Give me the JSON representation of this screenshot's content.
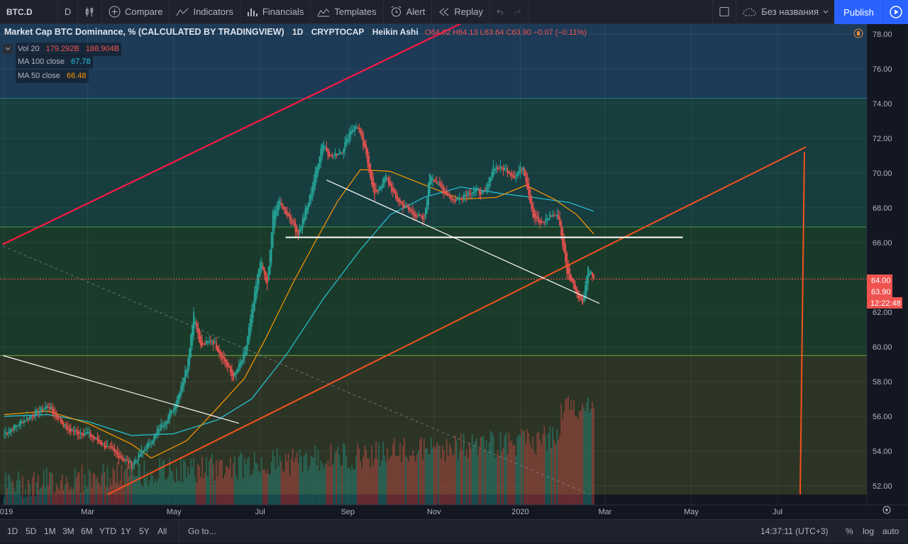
{
  "toolbar": {
    "symbol": "BTC.D",
    "interval": "D",
    "compare": "Compare",
    "indicators": "Indicators",
    "financials": "Financials",
    "templates": "Templates",
    "alert": "Alert",
    "replay": "Replay",
    "layout_name": "Без названия",
    "publish": "Publish"
  },
  "legend": {
    "title": "Market Cap BTC Dominance, % (CALCULATED BY TRADINGVIEW)",
    "interval": "1D",
    "exchange": "CRYPTOCAP",
    "style": "Heikin Ashi",
    "ohlc": "O64.02  H64.13  L63.64  C63.90  −0.07 (−0.11%)",
    "vol_label": "Vol 20",
    "vol_v1": "179.292B",
    "vol_v2": "188.904B",
    "ma100_label": "MA 100 close",
    "ma100_value": "67.78",
    "ma50_label": "MA 50 close",
    "ma50_value": "66.48"
  },
  "colors": {
    "up": "#26a69a",
    "down": "#ef5350",
    "ma100": "#26c6da",
    "ma50": "#ff9800",
    "trend_red": "#ff1744",
    "support_white": "#ffffff"
  },
  "chart_data": {
    "type": "candlestick",
    "title": "Market Cap BTC Dominance, % (CALCULATED BY TRADINGVIEW)",
    "ylim": [
      51.5,
      79
    ],
    "y_ticks": [
      "78.00",
      "76.00",
      "74.00",
      "72.00",
      "70.00",
      "68.00",
      "66.00",
      "64.00",
      "62.00",
      "60.00",
      "58.00",
      "56.00",
      "54.00",
      "52.00"
    ],
    "x_ticks": [
      "2019",
      "Mar",
      "May",
      "Jul",
      "Sep",
      "Nov",
      "2020",
      "Mar",
      "May",
      "Jul"
    ],
    "price_labels": [
      "64.00",
      "63.90"
    ],
    "countdown": "12:22:48",
    "zones": [
      {
        "from": 74.3,
        "to": 79,
        "color": "#1d3b57"
      },
      {
        "from": 66.9,
        "to": 74.3,
        "color": "#173d3f"
      },
      {
        "from": 59.5,
        "to": 66.9,
        "color": "#1a3a2a"
      },
      {
        "from": 51.5,
        "to": 59.5,
        "color": "#2c3525"
      }
    ],
    "price_path": [
      [
        "2019-01-01",
        55.0
      ],
      [
        "2019-01-15",
        55.8
      ],
      [
        "2019-02-01",
        56.6
      ],
      [
        "2019-02-15",
        55.2
      ],
      [
        "2019-03-01",
        55.0
      ],
      [
        "2019-03-15",
        54.2
      ],
      [
        "2019-04-01",
        53.2
      ],
      [
        "2019-04-15",
        54.6
      ],
      [
        "2019-05-01",
        56.5
      ],
      [
        "2019-05-10",
        58.8
      ],
      [
        "2019-05-15",
        62.0
      ],
      [
        "2019-05-20",
        60.0
      ],
      [
        "2019-05-28",
        60.4
      ],
      [
        "2019-06-05",
        59.3
      ],
      [
        "2019-06-12",
        58.2
      ],
      [
        "2019-06-20",
        59.6
      ],
      [
        "2019-06-26",
        62.5
      ],
      [
        "2019-07-01",
        65.0
      ],
      [
        "2019-07-06",
        63.5
      ],
      [
        "2019-07-10",
        67.6
      ],
      [
        "2019-07-14",
        68.4
      ],
      [
        "2019-07-22",
        67.4
      ],
      [
        "2019-07-28",
        66.5
      ],
      [
        "2019-08-05",
        68.6
      ],
      [
        "2019-08-10",
        70.3
      ],
      [
        "2019-08-14",
        71.8
      ],
      [
        "2019-08-20",
        70.9
      ],
      [
        "2019-08-28",
        71.3
      ],
      [
        "2019-09-03",
        72.5
      ],
      [
        "2019-09-08",
        72.7
      ],
      [
        "2019-09-14",
        71.0
      ],
      [
        "2019-09-20",
        68.7
      ],
      [
        "2019-09-28",
        69.8
      ],
      [
        "2019-10-05",
        68.5
      ],
      [
        "2019-10-15",
        67.8
      ],
      [
        "2019-10-25",
        67.3
      ],
      [
        "2019-10-29",
        70.0
      ],
      [
        "2019-11-05",
        69.2
      ],
      [
        "2019-11-15",
        68.4
      ],
      [
        "2019-11-25",
        68.9
      ],
      [
        "2019-12-01",
        69.0
      ],
      [
        "2019-12-07",
        68.8
      ],
      [
        "2019-12-13",
        70.4
      ],
      [
        "2019-12-22",
        70.2
      ],
      [
        "2019-12-28",
        69.8
      ],
      [
        "2020-01-03",
        70.4
      ],
      [
        "2020-01-10",
        67.6
      ],
      [
        "2020-01-16",
        67.0
      ],
      [
        "2020-01-22",
        67.6
      ],
      [
        "2020-01-28",
        67.5
      ],
      [
        "2020-02-03",
        64.3
      ],
      [
        "2020-02-09",
        63.3
      ],
      [
        "2020-02-14",
        62.5
      ],
      [
        "2020-02-18",
        64.6
      ],
      [
        "2020-02-22",
        63.9
      ]
    ],
    "ma50": [
      [
        "2019-01-01",
        56.1
      ],
      [
        "2019-02-01",
        56.3
      ],
      [
        "2019-03-01",
        55.6
      ],
      [
        "2019-04-01",
        54.4
      ],
      [
        "2019-04-15",
        53.6
      ],
      [
        "2019-05-10",
        54.6
      ],
      [
        "2019-06-01",
        56.5
      ],
      [
        "2019-06-20",
        58.2
      ],
      [
        "2019-07-05",
        60.5
      ],
      [
        "2019-07-25",
        63.8
      ],
      [
        "2019-08-10",
        66.2
      ],
      [
        "2019-08-25",
        68.4
      ],
      [
        "2019-09-10",
        70.2
      ],
      [
        "2019-10-01",
        70.1
      ],
      [
        "2019-11-01",
        69.1
      ],
      [
        "2019-11-20",
        68.5
      ],
      [
        "2019-12-15",
        68.6
      ],
      [
        "2020-01-05",
        69.3
      ],
      [
        "2020-01-25",
        68.5
      ],
      [
        "2020-02-10",
        67.6
      ],
      [
        "2020-02-22",
        66.5
      ]
    ],
    "ma100": [
      [
        "2019-01-01",
        56.0
      ],
      [
        "2019-02-01",
        56.1
      ],
      [
        "2019-03-01",
        55.7
      ],
      [
        "2019-04-01",
        54.9
      ],
      [
        "2019-05-01",
        55.0
      ],
      [
        "2019-06-01",
        55.8
      ],
      [
        "2019-06-25",
        57.0
      ],
      [
        "2019-07-20",
        59.6
      ],
      [
        "2019-08-15",
        62.8
      ],
      [
        "2019-09-10",
        65.6
      ],
      [
        "2019-10-01",
        67.6
      ],
      [
        "2019-10-25",
        68.6
      ],
      [
        "2019-11-20",
        69.2
      ],
      [
        "2019-12-20",
        68.8
      ],
      [
        "2020-01-10",
        68.6
      ],
      [
        "2020-02-05",
        68.3
      ],
      [
        "2020-02-22",
        67.8
      ]
    ],
    "annotations": [
      {
        "type": "trendline",
        "color": "red",
        "points": [
          [
            "2018-12-31",
            65.9
          ],
          [
            "2019-12-18",
            79.7
          ]
        ]
      },
      {
        "type": "trendline",
        "color": "red",
        "points": [
          [
            "2019-03-15",
            51.5
          ],
          [
            "2020-07-21",
            71.5
          ]
        ]
      },
      {
        "type": "vertical_line",
        "color": "red",
        "points": [
          [
            "2020-07-20",
            71.2
          ],
          [
            "2020-07-17",
            51.5
          ]
        ]
      },
      {
        "type": "trendline",
        "color": "white",
        "points": [
          [
            "2018-12-31",
            59.5
          ],
          [
            "2019-06-16",
            55.6
          ]
        ]
      },
      {
        "type": "trendline",
        "color": "white",
        "points": [
          [
            "2019-08-17",
            69.6
          ],
          [
            "2020-02-26",
            62.5
          ]
        ]
      },
      {
        "type": "horizontal_segment",
        "color": "white",
        "y": 66.3,
        "points": [
          [
            "2019-07-19",
            66.3
          ],
          [
            "2020-04-25",
            66.3
          ]
        ]
      },
      {
        "type": "dashed_line",
        "color": "gray",
        "points": [
          [
            "2018-12-31",
            65.8
          ],
          [
            "2020-02-19",
            51.5
          ]
        ]
      }
    ]
  },
  "bottom": {
    "ranges": [
      "1D",
      "5D",
      "1M",
      "3M",
      "6M",
      "YTD",
      "1Y",
      "5Y",
      "All"
    ],
    "goto": "Go to...",
    "clock": "14:37:11 (UTC+3)",
    "percent": "%",
    "log": "log",
    "auto": "auto"
  }
}
